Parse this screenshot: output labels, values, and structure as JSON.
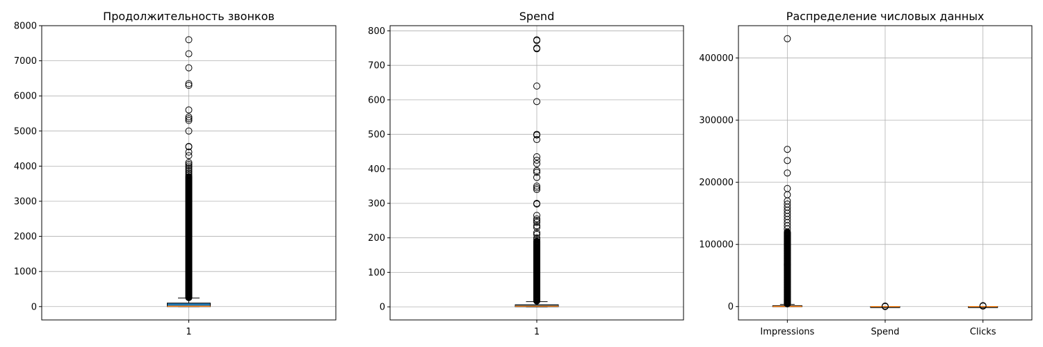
{
  "chart_data": [
    {
      "type": "boxplot",
      "title": "Продолжительность звонков",
      "xlabel": "",
      "ylabel": "",
      "ylim": [
        -380,
        8000
      ],
      "yticks": [
        0,
        1000,
        2000,
        3000,
        4000,
        5000,
        6000,
        7000,
        8000
      ],
      "grid": true,
      "patch_artist": true,
      "box_color": "#1f77b4",
      "median_color": "#ff7f0e",
      "boxes": [
        {
          "label": "1",
          "q1": 0,
          "median": 10,
          "q3": 100,
          "whisker_low": 0,
          "whisker_high": 245,
          "dense_flier_range": [
            250,
            3700
          ],
          "fliers": [
            3750,
            3800,
            3850,
            3900,
            3950,
            4000,
            4050,
            4100,
            4300,
            4400,
            4550,
            4560,
            5000,
            5300,
            5350,
            5400,
            5600,
            6300,
            6350,
            6800,
            7200,
            7600
          ]
        }
      ]
    },
    {
      "type": "boxplot",
      "title": "Spend",
      "xlabel": "",
      "ylabel": "",
      "ylim": [
        -38,
        815
      ],
      "yticks": [
        0,
        100,
        200,
        300,
        400,
        500,
        600,
        700,
        800
      ],
      "grid": true,
      "patch_artist": true,
      "box_color": "#1f77b4",
      "median_color": "#ff7f0e",
      "boxes": [
        {
          "label": "1",
          "q1": 0.5,
          "median": 2,
          "q3": 6,
          "whisker_low": 0,
          "whisker_high": 15,
          "dense_flier_range": [
            16,
            190
          ],
          "fliers": [
            195,
            200,
            210,
            215,
            230,
            235,
            245,
            250,
            255,
            265,
            298,
            300,
            340,
            345,
            350,
            375,
            390,
            395,
            415,
            425,
            435,
            485,
            498,
            500,
            595,
            640,
            748,
            750,
            772,
            774
          ]
        }
      ]
    },
    {
      "type": "boxplot",
      "title": "Распределение числовых данных",
      "xlabel": "",
      "ylabel": "",
      "ylim": [
        -21500,
        452000
      ],
      "yticks": [
        0,
        100000,
        200000,
        300000,
        400000
      ],
      "grid": true,
      "patch_artist": true,
      "box_color": "#1f77b4",
      "median_color": "#ff7f0e",
      "boxes": [
        {
          "label": "Impressions",
          "q1": 0,
          "median": 300,
          "q3": 1500,
          "whisker_low": 0,
          "whisker_high": 3500,
          "dense_flier_range": [
            3600,
            120000
          ],
          "fliers": [
            125000,
            130000,
            135000,
            140000,
            145000,
            150000,
            155000,
            160000,
            165000,
            170000,
            180000,
            190000,
            215000,
            235000,
            253000,
            431000
          ]
        },
        {
          "label": "Spend",
          "q1": 0,
          "median": 2,
          "q3": 6,
          "whisker_low": 0,
          "whisker_high": 15,
          "dense_flier_range": [
            16,
            800
          ],
          "fliers": []
        },
        {
          "label": "Clicks",
          "q1": 0,
          "median": 1,
          "q3": 5,
          "whisker_low": 0,
          "whisker_high": 12,
          "dense_flier_range": [
            13,
            1500
          ],
          "fliers": []
        }
      ]
    }
  ]
}
